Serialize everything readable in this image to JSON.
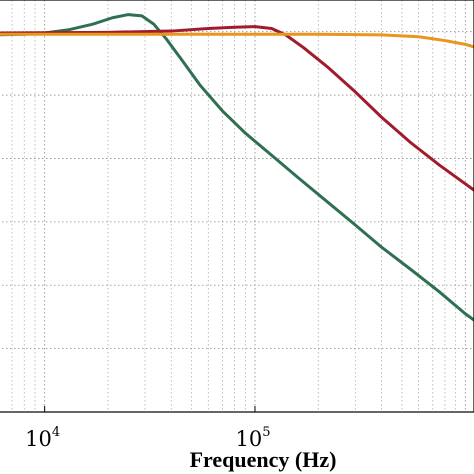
{
  "chart_data": {
    "type": "line",
    "xscale": "log",
    "xlim": [
      6000,
      1100000
    ],
    "ylim": [
      -6,
      0.5
    ],
    "grid": true,
    "grid_style": "dotted",
    "xlabel": "Frequency (Hz)",
    "ylabel": "",
    "title": "",
    "x_ticks": [
      {
        "value": 10000,
        "base": "10",
        "exponent": "4"
      },
      {
        "value": 100000,
        "base": "10",
        "exponent": "5"
      }
    ],
    "series": [
      {
        "color": "#2f7052",
        "points": [
          [
            6000,
            -0.05
          ],
          [
            8000,
            -0.04
          ],
          [
            10000,
            -0.02
          ],
          [
            13000,
            0.03
          ],
          [
            17000,
            0.12
          ],
          [
            21000,
            0.22
          ],
          [
            25000,
            0.27
          ],
          [
            29000,
            0.25
          ],
          [
            33000,
            0.12
          ],
          [
            38000,
            -0.12
          ],
          [
            45000,
            -0.45
          ],
          [
            55000,
            -0.85
          ],
          [
            70000,
            -1.25
          ],
          [
            90000,
            -1.6
          ],
          [
            120000,
            -1.95
          ],
          [
            160000,
            -2.3
          ],
          [
            220000,
            -2.68
          ],
          [
            300000,
            -3.05
          ],
          [
            400000,
            -3.4
          ],
          [
            550000,
            -3.75
          ],
          [
            750000,
            -4.1
          ],
          [
            1000000,
            -4.45
          ],
          [
            1100000,
            -4.55
          ]
        ]
      },
      {
        "color": "#a01c2c",
        "points": [
          [
            6000,
            -0.02
          ],
          [
            20000,
            -0.01
          ],
          [
            40000,
            0.01
          ],
          [
            60000,
            0.05
          ],
          [
            80000,
            0.07
          ],
          [
            100000,
            0.08
          ],
          [
            120000,
            0.05
          ],
          [
            140000,
            -0.05
          ],
          [
            170000,
            -0.25
          ],
          [
            220000,
            -0.55
          ],
          [
            300000,
            -0.95
          ],
          [
            400000,
            -1.35
          ],
          [
            550000,
            -1.75
          ],
          [
            750000,
            -2.1
          ],
          [
            1000000,
            -2.4
          ],
          [
            1100000,
            -2.5
          ]
        ]
      },
      {
        "color": "#e8961e",
        "points": [
          [
            6000,
            -0.04
          ],
          [
            50000,
            -0.04
          ],
          [
            200000,
            -0.04
          ],
          [
            400000,
            -0.05
          ],
          [
            600000,
            -0.08
          ],
          [
            800000,
            -0.14
          ],
          [
            1000000,
            -0.2
          ],
          [
            1100000,
            -0.24
          ]
        ]
      }
    ]
  }
}
